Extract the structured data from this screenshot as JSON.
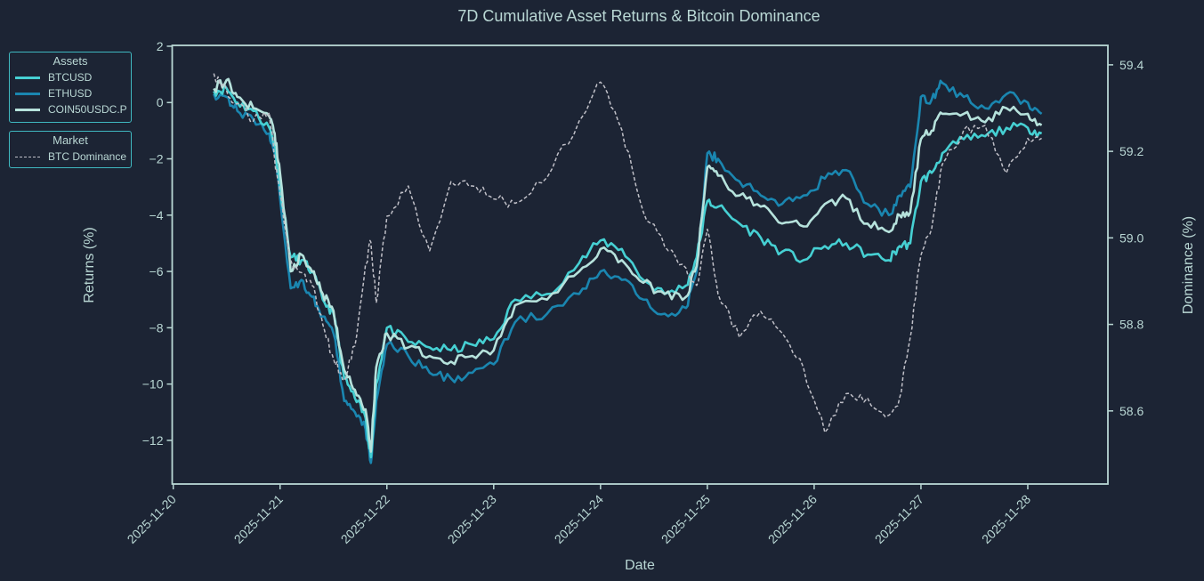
{
  "chart_data": {
    "type": "line",
    "title": "7D Cumulative Asset Returns & Bitcoin Dominance",
    "xlabel": "Date",
    "ylabel": "Returns (%)",
    "ylabel_right": "Dominance (%)",
    "x_ticks": [
      "2025-11-20",
      "2025-11-21",
      "2025-11-22",
      "2025-11-23",
      "2025-11-24",
      "2025-11-25",
      "2025-11-26",
      "2025-11-27",
      "2025-11-28"
    ],
    "y_ticks": [
      "2",
      "0",
      "−2",
      "−4",
      "−6",
      "−8",
      "−10",
      "−12"
    ],
    "y_tick_values": [
      2,
      0,
      -2,
      -4,
      -6,
      -8,
      -10,
      -12
    ],
    "y_right_ticks": [
      "59.4",
      "59.2",
      "59.0",
      "58.8",
      "58.6"
    ],
    "y_right_tick_values": [
      59.4,
      59.2,
      59.0,
      58.8,
      58.6
    ],
    "ylim": [
      -13.55,
      2.03
    ],
    "ylim_right": [
      58.431,
      59.445
    ],
    "xlim_days": [
      -0.01,
      8.75
    ],
    "grid": false,
    "legend_placement": "outside-left",
    "x_day_offsets": [
      0.38,
      0.5,
      0.6,
      0.75,
      0.9,
      0.95,
      1.0,
      1.1,
      1.2,
      1.3,
      1.4,
      1.5,
      1.6,
      1.7,
      1.8,
      1.85,
      1.9,
      2.0,
      2.2,
      2.4,
      2.6,
      2.8,
      3.0,
      3.2,
      3.5,
      3.8,
      4.0,
      4.2,
      4.4,
      4.6,
      4.8,
      4.9,
      5.0,
      5.1,
      5.3,
      5.5,
      5.7,
      5.9,
      6.1,
      6.3,
      6.5,
      6.7,
      6.8,
      6.9,
      7.0,
      7.1,
      7.2,
      7.4,
      7.6,
      7.8,
      8.0,
      8.13
    ],
    "series": [
      {
        "name": "BTCUSD",
        "group": "Assets",
        "color": "#46d0d3",
        "style": "solid",
        "axis": "left",
        "values": [
          0.4,
          0.5,
          0.0,
          -0.3,
          -0.9,
          -1.5,
          -3.0,
          -5.5,
          -5.6,
          -6.0,
          -7.0,
          -7.5,
          -9.8,
          -10.5,
          -11.2,
          -12.6,
          -10.0,
          -8.0,
          -8.5,
          -8.7,
          -8.8,
          -8.6,
          -8.4,
          -7.0,
          -6.8,
          -5.7,
          -4.9,
          -5.2,
          -6.3,
          -6.8,
          -6.5,
          -5.5,
          -3.5,
          -3.7,
          -4.3,
          -4.8,
          -5.3,
          -5.6,
          -5.1,
          -5.0,
          -5.4,
          -5.6,
          -5.1,
          -5.0,
          -2.8,
          -2.5,
          -1.8,
          -1.3,
          -1.2,
          -0.9,
          -0.9,
          -1.1
        ]
      },
      {
        "name": "ETHUSD",
        "group": "Assets",
        "color": "#1a86b0",
        "style": "solid",
        "axis": "left",
        "values": [
          0.3,
          0.2,
          -0.3,
          -0.6,
          -1.1,
          -1.8,
          -3.4,
          -6.6,
          -6.3,
          -6.9,
          -7.6,
          -8.2,
          -10.6,
          -11.0,
          -11.6,
          -12.8,
          -10.6,
          -8.6,
          -9.0,
          -9.6,
          -9.8,
          -9.6,
          -9.3,
          -7.8,
          -7.5,
          -6.8,
          -6.0,
          -6.3,
          -7.0,
          -7.5,
          -7.3,
          -6.0,
          -1.8,
          -2.0,
          -2.8,
          -3.3,
          -3.6,
          -3.3,
          -2.7,
          -2.4,
          -3.6,
          -4.0,
          -3.3,
          -3.0,
          0.2,
          0.1,
          0.7,
          0.2,
          -0.2,
          0.3,
          0.0,
          -0.4
        ]
      },
      {
        "name": "COIN50USDC.P",
        "group": "Assets",
        "color": "#b6e2dc",
        "style": "solid",
        "axis": "left",
        "values": [
          0.5,
          0.8,
          0.2,
          -0.2,
          -0.5,
          -1.1,
          -2.5,
          -6.0,
          -5.4,
          -6.0,
          -6.8,
          -7.4,
          -9.5,
          -10.2,
          -10.9,
          -12.4,
          -9.4,
          -8.2,
          -8.7,
          -9.0,
          -9.2,
          -9.0,
          -8.8,
          -7.2,
          -7.0,
          -6.0,
          -5.2,
          -5.6,
          -6.4,
          -6.8,
          -6.9,
          -5.8,
          -2.3,
          -2.6,
          -3.3,
          -3.7,
          -4.3,
          -4.4,
          -3.6,
          -3.4,
          -4.3,
          -4.6,
          -4.0,
          -3.9,
          -1.3,
          -1.0,
          -0.4,
          -0.4,
          -0.7,
          -0.2,
          -0.4,
          -0.8
        ]
      },
      {
        "name": "BTC Dominance",
        "group": "Market",
        "color": "#c0c0c8",
        "style": "dashed",
        "axis": "right",
        "values": [
          59.38,
          59.34,
          59.31,
          59.27,
          59.29,
          59.18,
          59.1,
          58.95,
          58.92,
          58.89,
          58.8,
          58.72,
          58.67,
          58.75,
          58.94,
          58.99,
          58.85,
          59.05,
          59.12,
          58.97,
          59.13,
          59.12,
          59.09,
          59.08,
          59.14,
          59.27,
          59.36,
          59.25,
          59.06,
          58.98,
          58.93,
          58.89,
          59.02,
          58.87,
          58.77,
          58.83,
          58.78,
          58.7,
          58.55,
          58.64,
          58.63,
          58.59,
          58.63,
          58.77,
          58.96,
          59.02,
          59.17,
          59.25,
          59.26,
          59.15,
          59.23,
          59.23
        ]
      }
    ],
    "legend_groups": [
      {
        "title": "Assets",
        "entries": [
          "BTCUSD",
          "ETHUSD",
          "COIN50USDC.P"
        ]
      },
      {
        "title": "Market",
        "entries": [
          "BTC Dominance"
        ]
      }
    ]
  }
}
